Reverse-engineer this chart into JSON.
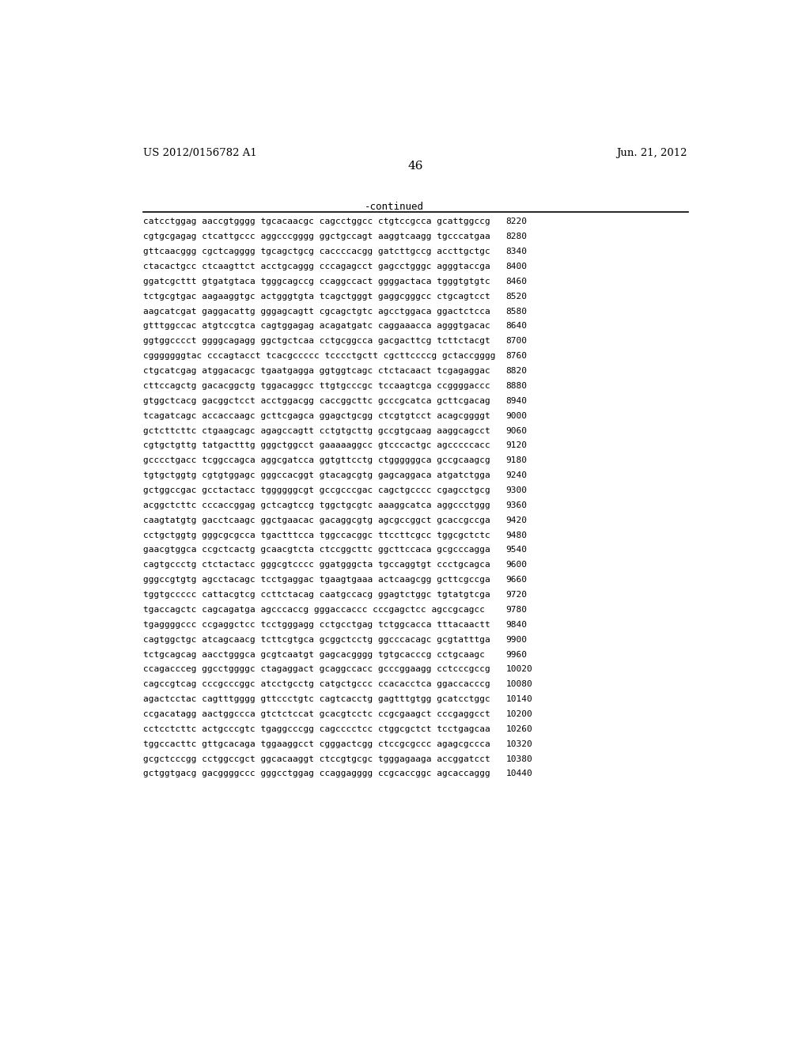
{
  "header_left": "US 2012/0156782 A1",
  "header_right": "Jun. 21, 2012",
  "page_number": "46",
  "continued_label": "-continued",
  "background_color": "#ffffff",
  "text_color": "#000000",
  "sequence_lines": [
    [
      "catcctggag aaccgtgggg tgcacaacgc cagcctggcc ctgtccgcca gcattggccg",
      "8220"
    ],
    [
      "cgtgcgagag ctcattgccc aggcccgggg ggctgccagt aaggtcaagg tgcccatgaa",
      "8280"
    ],
    [
      "gttcaacggg cgctcagggg tgcagctgcg caccccacgg gatcttgccg accttgctgc",
      "8340"
    ],
    [
      "ctacactgcc ctcaagttct acctgcaggg cccagagcct gagcctgggc agggtaccga",
      "8400"
    ],
    [
      "ggatcgcttt gtgatgtaca tgggcagccg ccaggccact ggggactaca tgggtgtgtc",
      "8460"
    ],
    [
      "tctgcgtgac aagaaggtgc actgggtgta tcagctgggt gaggcgggcc ctgcagtcct",
      "8520"
    ],
    [
      "aagcatcgat gaggacattg gggagcagtt cgcagctgtc agcctggaca ggactctcca",
      "8580"
    ],
    [
      "gtttggccac atgtccgtca cagtggagag acagatgatc caggaaacca agggtgacac",
      "8640"
    ],
    [
      "ggtggcccct ggggcagagg ggctgctcaa cctgcggcca gacgacttcg tcttctacgt",
      "8700"
    ],
    [
      "cgggggggtac cccagtacct tcacgccccc tcccctgctt cgcttccccg gctaccgggg",
      "8760"
    ],
    [
      "ctgcatcgag atggacacgc tgaatgagga ggtggtcagc ctctacaact tcgagaggac",
      "8820"
    ],
    [
      "cttccagctg gacacggctg tggacaggcc ttgtgcccgc tccaagtcga ccggggaccc",
      "8880"
    ],
    [
      "gtggctcacg gacggctcct acctggacgg caccggcttc gcccgcatca gcttcgacag",
      "8940"
    ],
    [
      "tcagatcagc accaccaagc gcttcgagca ggagctgcgg ctcgtgtcct acagcggggt",
      "9000"
    ],
    [
      "gctcttcttc ctgaagcagc agagccagtt cctgtgcttg gccgtgcaag aaggcagcct",
      "9060"
    ],
    [
      "cgtgctgttg tatgactttg gggctggcct gaaaaaggcc gtcccactgc agcccccacc",
      "9120"
    ],
    [
      "gcccctgacc tcggccagca aggcgatcca ggtgttcctg ctggggggca gccgcaagcg",
      "9180"
    ],
    [
      "tgtgctggtg cgtgtggagc gggccacggt gtacagcgtg gagcaggaca atgatctgga",
      "9240"
    ],
    [
      "gctggccgac gcctactacc tggggggcgt gccgcccgac cagctgcccc cgagcctgcg",
      "9300"
    ],
    [
      "acggctcttc cccaccggag gctcagtccg tggctgcgtc aaaggcatca aggccctggg",
      "9360"
    ],
    [
      "caagtatgtg gacctcaagc ggctgaacac gacaggcgtg agcgccggct gcaccgccga",
      "9420"
    ],
    [
      "cctgctggtg gggcgcgcca tgactttcca tggccacggc ttccttcgcc tggcgctctc",
      "9480"
    ],
    [
      "gaacgtggca ccgctcactg gcaacgtcta ctccggcttc ggcttccaca gcgcccagga",
      "9540"
    ],
    [
      "cagtgccctg ctctactacc gggcgtcccc ggatgggcta tgccaggtgt ccctgcagca",
      "9600"
    ],
    [
      "gggccgtgtg agcctacagc tcctgaggac tgaagtgaaa actcaagcgg gcttcgccga",
      "9660"
    ],
    [
      "tggtgccccc cattacgtcg ccttctacag caatgccacg ggagtctggc tgtatgtcga",
      "9720"
    ],
    [
      "tgaccagctc cagcagatga agcccaccg gggaccaccc cccgagctcc agccgcagcc",
      "9780"
    ],
    [
      "tgaggggccc ccgaggctcc tcctgggagg cctgcctgag tctggcacca tttacaactt",
      "9840"
    ],
    [
      "cagtggctgc atcagcaacg tcttcgtgca gcggctcctg ggcccacagc gcgtatttga",
      "9900"
    ],
    [
      "tctgcagcag aacctgggca gcgtcaatgt gagcacgggg tgtgcacccg cctgcaagc",
      "9960"
    ],
    [
      "ccagaccceg ggcctggggc ctagaggact gcaggccacc gcccggaagg cctcccgccg",
      "10020"
    ],
    [
      "cagccgtcag cccgcccggc atcctgcctg catgctgccc ccacacctca ggaccacccg",
      "10080"
    ],
    [
      "agactcctac cagtttgggg gttccctgtc cagtcacctg gagtttgtgg gcatcctggc",
      "10140"
    ],
    [
      "ccgacatagg aactggccca gtctctccat gcacgtcctc ccgcgaagct cccgaggcct",
      "10200"
    ],
    [
      "cctcctcttc actgcccgtc tgaggcccgg cagcccctcc ctggcgctct tcctgagcaa",
      "10260"
    ],
    [
      "tggccacttc gttgcacaga tggaaggcct cgggactcgg ctccgcgccc agagcgccca",
      "10320"
    ],
    [
      "gcgctcccgg cctggccgct ggcacaaggt ctccgtgcgc tgggagaaga accggatcct",
      "10380"
    ],
    [
      "gctggtgacg gacggggccc gggcctggag ccaggagggg ccgcaccggc agcaccaggg",
      "10440"
    ]
  ]
}
